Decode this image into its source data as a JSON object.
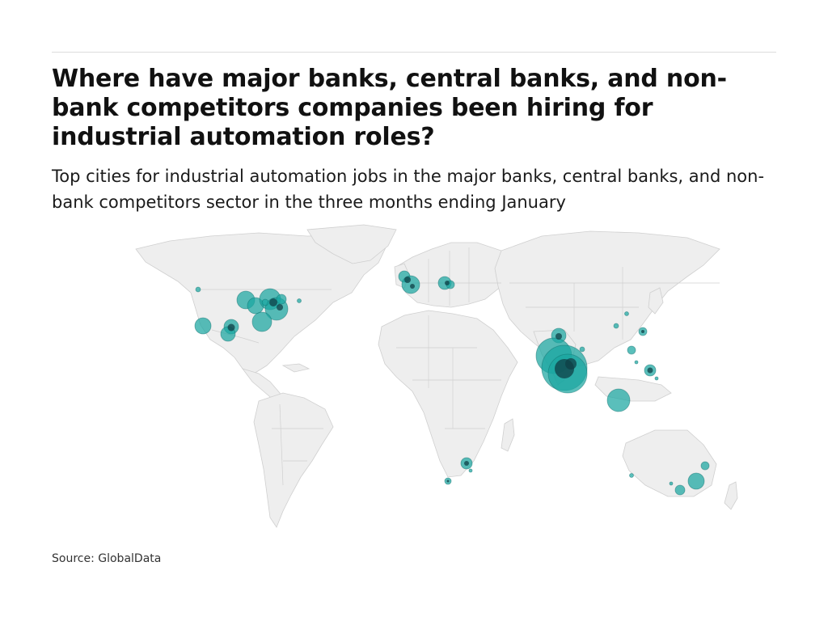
{
  "header": {
    "title": "Where have major banks, central banks, and non-bank competitors companies been hiring for industrial automation roles?",
    "subtitle": "Top cities for industrial automation jobs in the major banks, central banks, and non-bank competitors sector in the three months ending January"
  },
  "footer": {
    "source": "Source: GlobalData"
  },
  "colors": {
    "land": "#eeeeee",
    "borders": "#cccccc",
    "bubble_fill": "#1aa6a1",
    "bubble_dark": "#0f4f55"
  },
  "map": {
    "projection": "equirectangular",
    "bubble_style": "translucent-teal"
  }
}
